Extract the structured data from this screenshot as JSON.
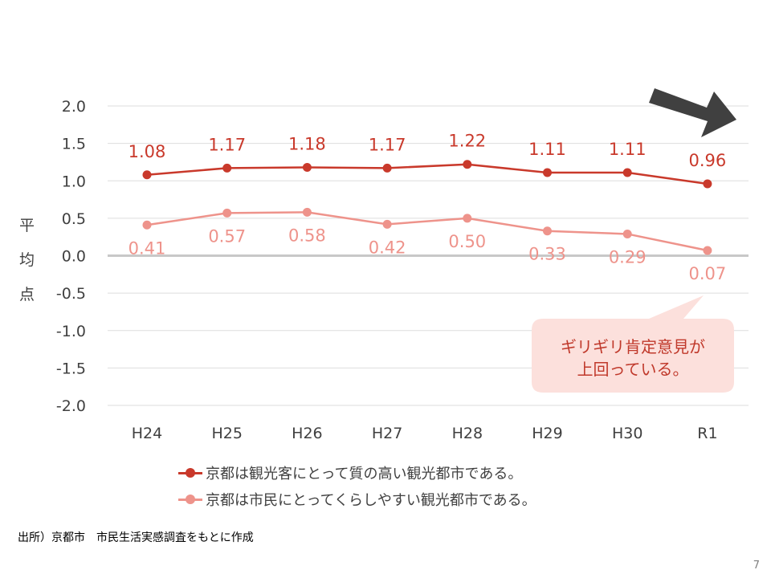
{
  "chart_data": {
    "type": "line",
    "categories": [
      "H24",
      "H25",
      "H26",
      "H27",
      "H28",
      "H29",
      "H30",
      "R1"
    ],
    "ylabel": "平均点",
    "ylim": [
      -2.0,
      2.0
    ],
    "yticks": [
      "2.0",
      "1.5",
      "1.0",
      "0.5",
      "0.0",
      "-0.5",
      "-1.0",
      "-1.5",
      "-2.0"
    ],
    "grid": true,
    "legend_position": "bottom",
    "series": [
      {
        "name": "京都は観光客にとって質の高い観光都市である。",
        "values": [
          1.08,
          1.17,
          1.18,
          1.17,
          1.22,
          1.11,
          1.11,
          0.96
        ],
        "labels": [
          "1.08",
          "1.17",
          "1.18",
          "1.17",
          "1.22",
          "1.11",
          "1.11",
          "0.96"
        ],
        "color": "#C9392B"
      },
      {
        "name": "京都は市民にとってくらしやすい観光都市である。",
        "values": [
          0.41,
          0.57,
          0.58,
          0.42,
          0.5,
          0.33,
          0.29,
          0.07
        ],
        "labels": [
          "0.41",
          "0.57",
          "0.58",
          "0.42",
          "0.50",
          "0.33",
          "0.29",
          "0.07"
        ],
        "color": "#EE938B"
      }
    ]
  },
  "callout": {
    "line1": "ギリギリ肯定意見が",
    "line2": "上回っている。",
    "fill": "#FCE0DC",
    "text_color": "#C0392B"
  },
  "arrow_color": "#404040",
  "source_note": "出所）京都市　市民生活実感調査をもとに作成",
  "page_number": "7"
}
